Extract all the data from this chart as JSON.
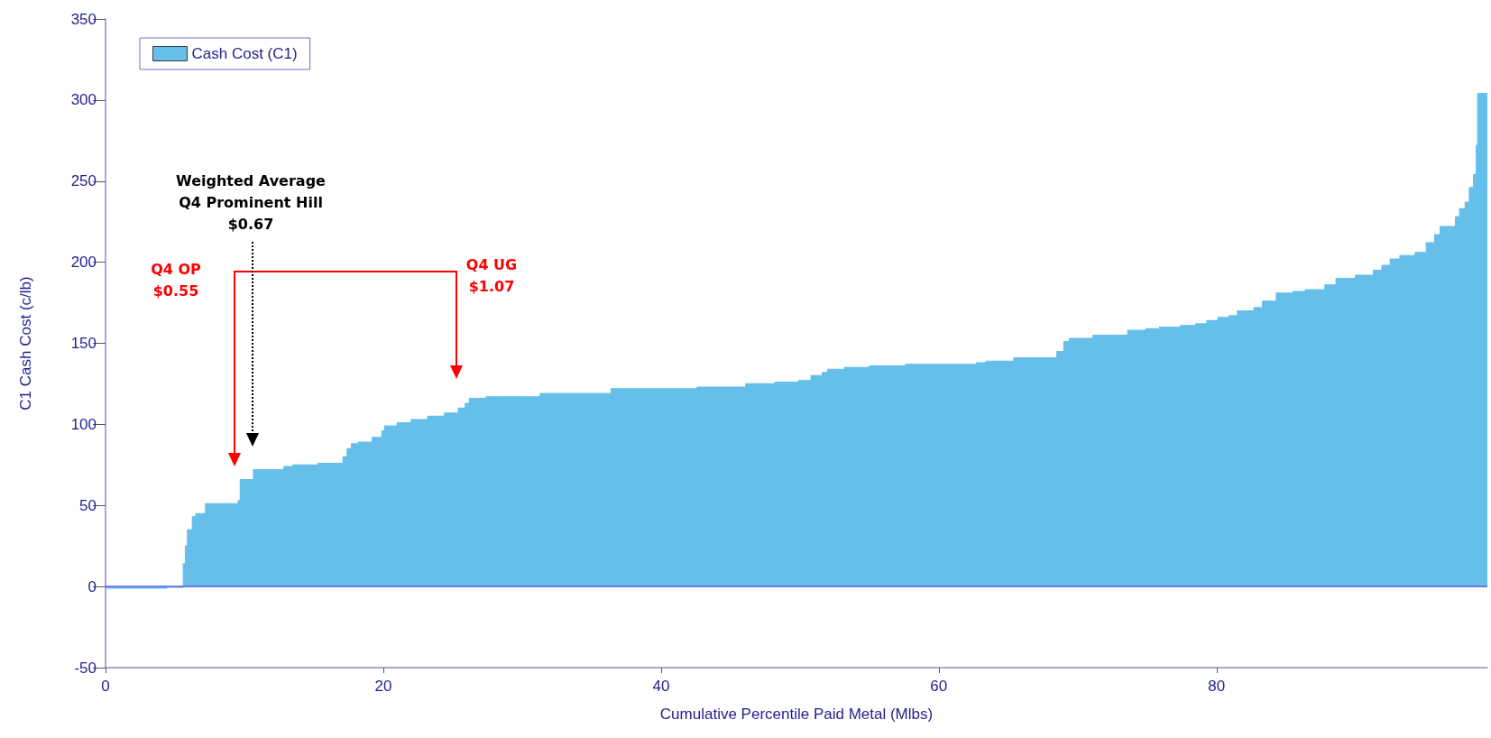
{
  "chart_data": {
    "type": "area",
    "xlabel": "Cumulative Percentile Paid Metal (Mlbs)",
    "ylabel": "C1 Cash Cost (c/lb)",
    "xlim": [
      0,
      99.5
    ],
    "xticks": [
      0,
      20,
      40,
      60,
      80
    ],
    "ylim": [
      -50,
      350
    ],
    "yticks": [
      -50,
      0,
      50,
      100,
      150,
      200,
      250,
      300,
      350
    ],
    "grid": false,
    "legend": "top left",
    "marker": "none",
    "ref_lines": [
      {
        "axis": "y",
        "value": 0,
        "color": "#5a5ae6"
      }
    ],
    "annotations": [
      "Q4 OP\n$0.55",
      "Weighted Average\nQ4 Prominent Hill\n$0.67",
      "Q4 UG\n$1.07"
    ],
    "series": [
      {
        "name": "Cash Cost (C1)",
        "color": "#65bfea",
        "x": [
          0,
          4.4,
          4.4,
          5.6,
          5.6,
          5.75,
          5.75,
          5.9,
          5.9,
          6.25,
          6.25,
          6.5,
          6.5,
          7.2,
          7.2,
          9.55,
          9.55,
          9.7,
          9.7,
          10.65,
          10.65,
          12.85,
          12.85,
          13.5,
          13.5,
          15.3,
          15.3,
          17.1,
          17.1,
          17.4,
          17.4,
          17.7,
          17.7,
          18.2,
          18.2,
          19.2,
          19.2,
          19.9,
          19.9,
          20.1,
          20.1,
          21,
          21,
          22,
          22,
          23.2,
          23.2,
          24.4,
          24.4,
          25.4,
          25.4,
          25.9,
          25.9,
          26.2,
          26.2,
          27.4,
          27.4,
          31.3,
          31.3,
          36.4,
          36.4,
          42.6,
          42.6,
          46.1,
          46.1,
          48.2,
          48.2,
          49.9,
          49.9,
          50.8,
          50.8,
          51.6,
          51.6,
          52,
          52,
          53.2,
          53.2,
          55,
          55,
          57.6,
          57.6,
          62.7,
          62.7,
          63.4,
          63.4,
          65.4,
          65.4,
          68.5,
          68.5,
          69,
          69,
          69.4,
          69.4,
          71.1,
          71.1,
          72.5,
          72.5,
          73.6,
          73.6,
          74.9,
          74.9,
          75.9,
          75.9,
          77.4,
          77.4,
          78.5,
          78.5,
          79.3,
          79.3,
          80.1,
          80.1,
          80.9,
          80.9,
          81.5,
          81.5,
          82.7,
          82.7,
          83.3,
          83.3,
          84.3,
          84.3,
          85.5,
          85.5,
          86.4,
          86.4,
          87.8,
          87.8,
          88.6,
          88.6,
          90,
          90,
          91.3,
          91.3,
          91.9,
          91.9,
          92.5,
          92.5,
          93.2,
          93.2,
          94.3,
          94.3,
          95.1,
          95.1,
          95.7,
          95.7,
          96.1,
          96.1,
          97.2,
          97.2,
          97.5,
          97.5,
          97.9,
          97.9,
          98.2,
          98.2,
          98.5,
          98.5,
          98.7,
          98.7,
          98.8,
          98.8,
          99.5
        ],
        "values": [
          -1,
          -1,
          -0.5,
          -0.5,
          14,
          14,
          25,
          25,
          35,
          35,
          43,
          43,
          45,
          45,
          51,
          51,
          53,
          53,
          66,
          66,
          72,
          72,
          74,
          74,
          75,
          75,
          76,
          76,
          80,
          80,
          85,
          85,
          88,
          88,
          89,
          89,
          92,
          92,
          96,
          96,
          99,
          99,
          101,
          101,
          103,
          103,
          105,
          105,
          107,
          107,
          110,
          110,
          113,
          113,
          116,
          116,
          117,
          117,
          119,
          119,
          122,
          122,
          123,
          123,
          125,
          125,
          126,
          126,
          127,
          127,
          130,
          130,
          132,
          132,
          134,
          134,
          135,
          135,
          136,
          136,
          137,
          137,
          138,
          138,
          139,
          139,
          141,
          141,
          145,
          145,
          151,
          151,
          153,
          153,
          155,
          155,
          155,
          155,
          158,
          158,
          159,
          159,
          160,
          160,
          161,
          161,
          162,
          162,
          164,
          164,
          166,
          166,
          167,
          167,
          170,
          170,
          172,
          172,
          176,
          176,
          181,
          181,
          182,
          182,
          183,
          183,
          186,
          186,
          190,
          190,
          192,
          192,
          195,
          195,
          198,
          198,
          202,
          202,
          204,
          204,
          206,
          206,
          212,
          212,
          217,
          217,
          222,
          222,
          228,
          228,
          233,
          233,
          237,
          237,
          246,
          246,
          254,
          254,
          272,
          272,
          304,
          304
        ]
      }
    ]
  }
}
